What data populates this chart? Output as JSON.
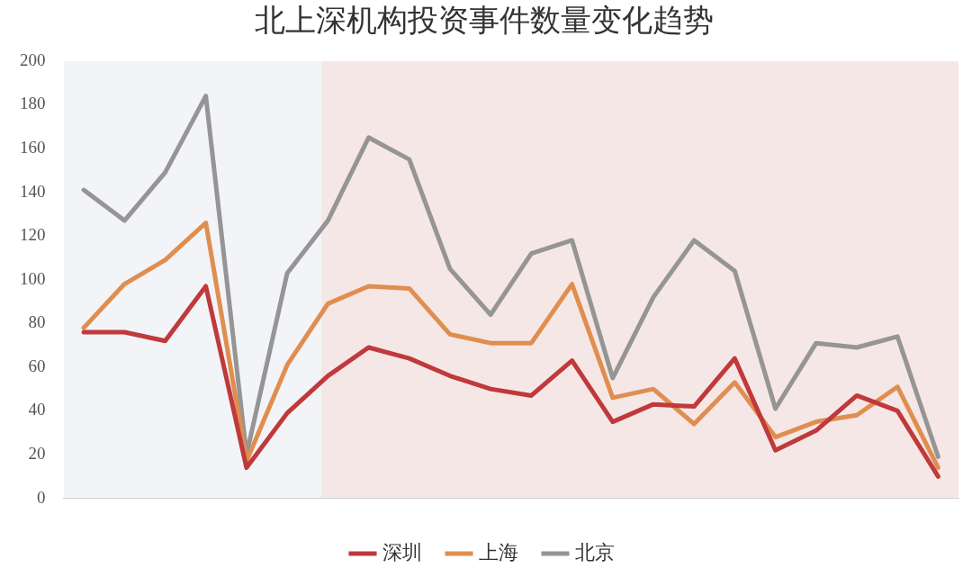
{
  "chart_data": {
    "type": "line",
    "title": "北上深机构投资事件数量变化趋势",
    "categories": [
      null,
      null,
      null,
      null,
      null,
      null,
      null,
      null,
      null,
      null,
      null,
      null,
      null,
      null,
      null,
      null,
      null,
      null,
      null,
      null,
      null,
      null
    ],
    "ylim": [
      0,
      200
    ],
    "yticks": [
      0,
      20,
      40,
      60,
      80,
      100,
      120,
      140,
      160,
      180,
      200
    ],
    "legend": "bottom",
    "marker": "none",
    "line_style": "solid",
    "series": [
      {
        "name": "深圳",
        "color": "#c0393b",
        "values": [
          76,
          76,
          72,
          97,
          14,
          39,
          56,
          69,
          64,
          56,
          50,
          47,
          63,
          35,
          43,
          42,
          64,
          22,
          31,
          47,
          40,
          10
        ]
      },
      {
        "name": "上海",
        "color": "#e08e50",
        "values": [
          78,
          98,
          109,
          126,
          17,
          61,
          89,
          97,
          96,
          75,
          71,
          71,
          98,
          46,
          50,
          34,
          53,
          28,
          35,
          38,
          51,
          14
        ]
      },
      {
        "name": "北京",
        "color": "#959595",
        "values": [
          141,
          127,
          149,
          184,
          20,
          103,
          127,
          165,
          155,
          105,
          84,
          112,
          118,
          55,
          92,
          118,
          104,
          41,
          71,
          69,
          74,
          19
        ]
      }
    ]
  }
}
